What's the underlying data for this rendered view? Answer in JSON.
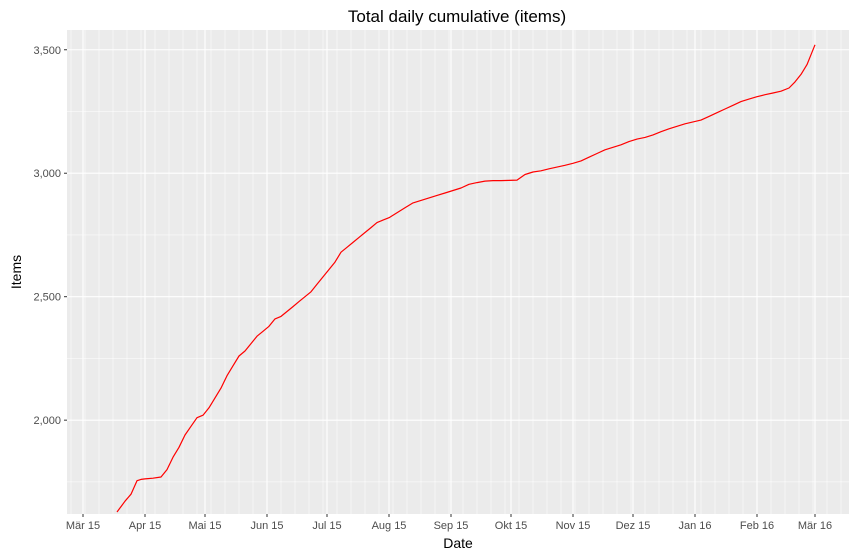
{
  "chart_data": {
    "type": "line",
    "title": "Total daily cumulative (items)",
    "xlabel": "Date",
    "ylabel": "Items",
    "xlim": [
      "2015-02-21",
      "2016-03-18"
    ],
    "ylim": [
      1620,
      3580
    ],
    "grid": true,
    "legend": "none",
    "colors": {
      "line": "#ff0000",
      "panel": "#ebebeb",
      "grid": "#ffffff"
    },
    "x_ticks": [
      {
        "date": "2015-03-01",
        "label": "Mär 15"
      },
      {
        "date": "2015-04-01",
        "label": "Apr 15"
      },
      {
        "date": "2015-05-01",
        "label": "Mai 15"
      },
      {
        "date": "2015-06-01",
        "label": "Jun 15"
      },
      {
        "date": "2015-07-01",
        "label": "Jul 15"
      },
      {
        "date": "2015-08-01",
        "label": "Aug 15"
      },
      {
        "date": "2015-09-01",
        "label": "Sep 15"
      },
      {
        "date": "2015-10-01",
        "label": "Okt 15"
      },
      {
        "date": "2015-11-01",
        "label": "Nov 15"
      },
      {
        "date": "2015-12-01",
        "label": "Dez 15"
      },
      {
        "date": "2016-01-01",
        "label": "Jan 16"
      },
      {
        "date": "2016-02-01",
        "label": "Feb 16"
      },
      {
        "date": "2016-03-01",
        "label": "Mär 16"
      }
    ],
    "y_ticks": [
      {
        "value": 2000,
        "label": "2,000"
      },
      {
        "value": 2500,
        "label": "2,500"
      },
      {
        "value": 3000,
        "label": "3,000"
      },
      {
        "value": 3500,
        "label": "3,500"
      }
    ],
    "series": [
      {
        "x": [
          "2015-03-18",
          "2015-03-20",
          "2015-03-22",
          "2015-03-25",
          "2015-03-28",
          "2015-03-30",
          "2015-04-01",
          "2015-04-05",
          "2015-04-09",
          "2015-04-12",
          "2015-04-15",
          "2015-04-18",
          "2015-04-21",
          "2015-04-24",
          "2015-04-27",
          "2015-04-30",
          "2015-05-03",
          "2015-05-06",
          "2015-05-09",
          "2015-05-12",
          "2015-05-15",
          "2015-05-18",
          "2015-05-21",
          "2015-05-24",
          "2015-05-27",
          "2015-05-30",
          "2015-06-02",
          "2015-06-05",
          "2015-06-08",
          "2015-06-11",
          "2015-06-14",
          "2015-06-17",
          "2015-06-20",
          "2015-06-23",
          "2015-06-26",
          "2015-06-29",
          "2015-07-02",
          "2015-07-05",
          "2015-07-08",
          "2015-07-11",
          "2015-07-14",
          "2015-07-17",
          "2015-07-20",
          "2015-07-23",
          "2015-07-26",
          "2015-07-29",
          "2015-08-01",
          "2015-08-05",
          "2015-08-09",
          "2015-08-13",
          "2015-08-17",
          "2015-08-21",
          "2015-08-25",
          "2015-08-29",
          "2015-09-02",
          "2015-09-06",
          "2015-09-10",
          "2015-09-14",
          "2015-09-18",
          "2015-09-22",
          "2015-09-26",
          "2015-09-30",
          "2015-10-04",
          "2015-10-08",
          "2015-10-12",
          "2015-10-16",
          "2015-10-20",
          "2015-10-24",
          "2015-10-28",
          "2015-11-01",
          "2015-11-05",
          "2015-11-09",
          "2015-11-13",
          "2015-11-17",
          "2015-11-21",
          "2015-11-25",
          "2015-11-29",
          "2015-12-03",
          "2015-12-07",
          "2015-12-11",
          "2015-12-15",
          "2015-12-19",
          "2015-12-23",
          "2015-12-27",
          "2015-12-31",
          "2016-01-04",
          "2016-01-08",
          "2016-01-12",
          "2016-01-16",
          "2016-01-20",
          "2016-01-24",
          "2016-01-28",
          "2016-02-01",
          "2016-02-05",
          "2016-02-09",
          "2016-02-13",
          "2016-02-17",
          "2016-02-20",
          "2016-02-23",
          "2016-02-26",
          "2016-02-28",
          "2016-03-01"
        ],
        "y": [
          1628,
          1650,
          1672,
          1700,
          1755,
          1760,
          1762,
          1765,
          1770,
          1800,
          1850,
          1890,
          1940,
          1975,
          2010,
          2020,
          2050,
          2090,
          2130,
          2180,
          2220,
          2260,
          2280,
          2310,
          2340,
          2360,
          2380,
          2410,
          2420,
          2440,
          2460,
          2480,
          2500,
          2520,
          2550,
          2580,
          2610,
          2640,
          2680,
          2700,
          2720,
          2740,
          2760,
          2780,
          2800,
          2810,
          2820,
          2840,
          2860,
          2880,
          2890,
          2900,
          2910,
          2920,
          2930,
          2940,
          2955,
          2962,
          2968,
          2970,
          2970,
          2971,
          2972,
          2995,
          3005,
          3010,
          3018,
          3025,
          3032,
          3040,
          3050,
          3065,
          3080,
          3095,
          3105,
          3115,
          3128,
          3138,
          3145,
          3155,
          3168,
          3180,
          3190,
          3200,
          3208,
          3215,
          3230,
          3245,
          3260,
          3275,
          3290,
          3300,
          3310,
          3318,
          3325,
          3332,
          3345,
          3370,
          3400,
          3440,
          3480,
          3520
        ]
      }
    ]
  }
}
